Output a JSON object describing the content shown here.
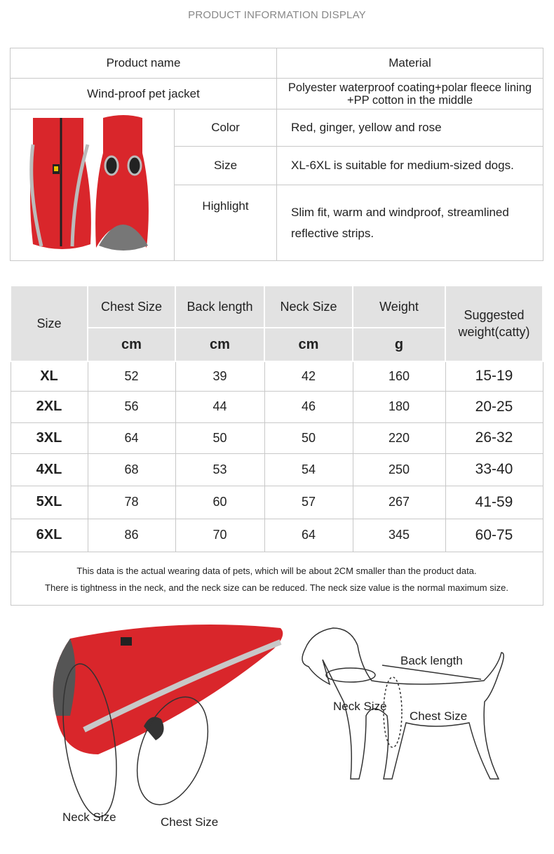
{
  "title": "PRODUCT INFORMATION DISPLAY",
  "info": {
    "product_name_label": "Product name",
    "material_label": "Material",
    "product_name": "Wind-proof pet jacket",
    "material": "Polyester waterproof coating+polar fleece lining +PP cotton in the middle",
    "rows": [
      {
        "label": "Color",
        "value": "Red, ginger, yellow and rose"
      },
      {
        "label": "Size",
        "value": "XL-6XL is suitable for medium-sized dogs."
      },
      {
        "label": "Highlight",
        "value": "Slim fit, warm and windproof, streamlined reflective strips."
      }
    ]
  },
  "size_table": {
    "headers": [
      "Size",
      "Chest Size",
      "Back length",
      "Neck Size",
      "Weight",
      "Suggested weight(catty)"
    ],
    "units": [
      "cm",
      "cm",
      "cm",
      "g"
    ],
    "rows": [
      [
        "XL",
        "52",
        "39",
        "42",
        "160",
        "15-19"
      ],
      [
        "2XL",
        "56",
        "44",
        "46",
        "180",
        "20-25"
      ],
      [
        "3XL",
        "64",
        "50",
        "50",
        "220",
        "26-32"
      ],
      [
        "4XL",
        "68",
        "53",
        "54",
        "250",
        "33-40"
      ],
      [
        "5XL",
        "78",
        "60",
        "57",
        "267",
        "41-59"
      ],
      [
        "6XL",
        "86",
        "70",
        "64",
        "345",
        "60-75"
      ]
    ],
    "note_1": "This data is the actual wearing data of pets, which will be about 2CM smaller than the product data.",
    "note_2": "There is tightness in the neck, and the neck size can be reduced. The neck size value is the normal maximum size."
  },
  "diagram": {
    "jacket_neck": "Neck Size",
    "jacket_chest": "Chest Size",
    "dog_back": "Back length",
    "dog_neck": "Neck Size",
    "dog_chest": "Chest Size"
  },
  "colors": {
    "jacket_red": "#d9262b",
    "header_gray": "#e2e2e2",
    "reflective": "#b8b8b8"
  }
}
